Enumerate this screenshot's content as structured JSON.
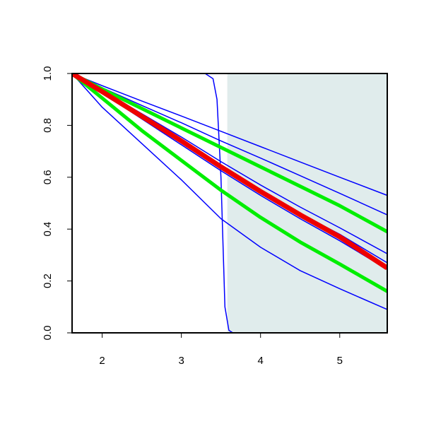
{
  "chart_data": {
    "type": "line",
    "xlim": [
      1.62,
      5.6
    ],
    "ylim": [
      0,
      1
    ],
    "xticks": [
      2,
      3,
      4,
      5
    ],
    "yticks": [
      {
        "value": 0,
        "label": "0.0"
      },
      0.2,
      0.4,
      0.6,
      0.8,
      {
        "value": 1,
        "label": "1.0"
      }
    ],
    "shaded_region": {
      "x": [
        3.58,
        5.6
      ],
      "color": "#e0ecec"
    },
    "series": [
      {
        "color": "#0000ff",
        "line_width": 1.5,
        "x": [
          1.62,
          2,
          2.5,
          3,
          3.5,
          4,
          4.5,
          5,
          5.6
        ],
        "values": [
          1,
          0.953,
          0.894,
          0.836,
          0.777,
          0.718,
          0.659,
          0.6,
          0.53
        ]
      },
      {
        "color": "#0000ff",
        "line_width": 1.5,
        "x": [
          1.62,
          2,
          2.5,
          3,
          3.5,
          4,
          4.5,
          5,
          5.6
        ],
        "values": [
          1,
          0.945,
          0.877,
          0.81,
          0.74,
          0.674,
          0.606,
          0.538,
          0.455
        ]
      },
      {
        "color": "#0000ff",
        "line_width": 1.5,
        "x": [
          1.62,
          2,
          2.5,
          3,
          3.5,
          4,
          4.5,
          5,
          5.6
        ],
        "values": [
          1,
          0.935,
          0.845,
          0.755,
          0.66,
          0.57,
          0.485,
          0.405,
          0.305
        ]
      },
      {
        "color": "#0000ff",
        "line_width": 1.5,
        "x": [
          1.62,
          2,
          2.5,
          3,
          3.5,
          4,
          4.5,
          5,
          5.6
        ],
        "values": [
          1,
          0.93,
          0.835,
          0.74,
          0.645,
          0.55,
          0.46,
          0.38,
          0.27
        ]
      },
      {
        "color": "#0000ff",
        "line_width": 1.5,
        "x": [
          1.62,
          2,
          2.5,
          3,
          3.5,
          4,
          4.5,
          5,
          5.6
        ],
        "values": [
          1,
          0.925,
          0.825,
          0.725,
          0.625,
          0.53,
          0.44,
          0.355,
          0.245
        ]
      },
      {
        "color": "#0000ff",
        "line_width": 1.5,
        "x": [
          1.62,
          2,
          2.5,
          3,
          3.5,
          4,
          4.5,
          5,
          5.6
        ],
        "values": [
          1,
          0.87,
          0.73,
          0.59,
          0.44,
          0.33,
          0.24,
          0.17,
          0.09
        ]
      },
      {
        "color": "#0000ff",
        "line_width": 1.5,
        "x": [
          1.62,
          3.3,
          3.4,
          3.45,
          3.5,
          3.52,
          3.55,
          3.6,
          3.65,
          5.6
        ],
        "values": [
          1,
          1,
          0.98,
          0.9,
          0.6,
          0.4,
          0.1,
          0.01,
          0,
          0
        ]
      },
      {
        "color": "#00ee00",
        "line_width": 5,
        "x": [
          1.62,
          2,
          2.5,
          3,
          3.5,
          4,
          4.5,
          5,
          5.6
        ],
        "values": [
          1,
          0.94,
          0.865,
          0.79,
          0.715,
          0.64,
          0.565,
          0.49,
          0.39
        ]
      },
      {
        "color": "#00ee00",
        "line_width": 5,
        "x": [
          1.62,
          2,
          2.5,
          3,
          3.5,
          4,
          4.5,
          5,
          5.6
        ],
        "values": [
          1,
          0.905,
          0.78,
          0.665,
          0.55,
          0.445,
          0.35,
          0.265,
          0.16
        ]
      },
      {
        "color": "#ee0000",
        "line_width": 7,
        "x": [
          1.62,
          2,
          2.5,
          3,
          3.5,
          4,
          4.5,
          5,
          5.6
        ],
        "values": [
          1,
          0.93,
          0.835,
          0.74,
          0.64,
          0.545,
          0.455,
          0.37,
          0.25
        ]
      }
    ]
  }
}
